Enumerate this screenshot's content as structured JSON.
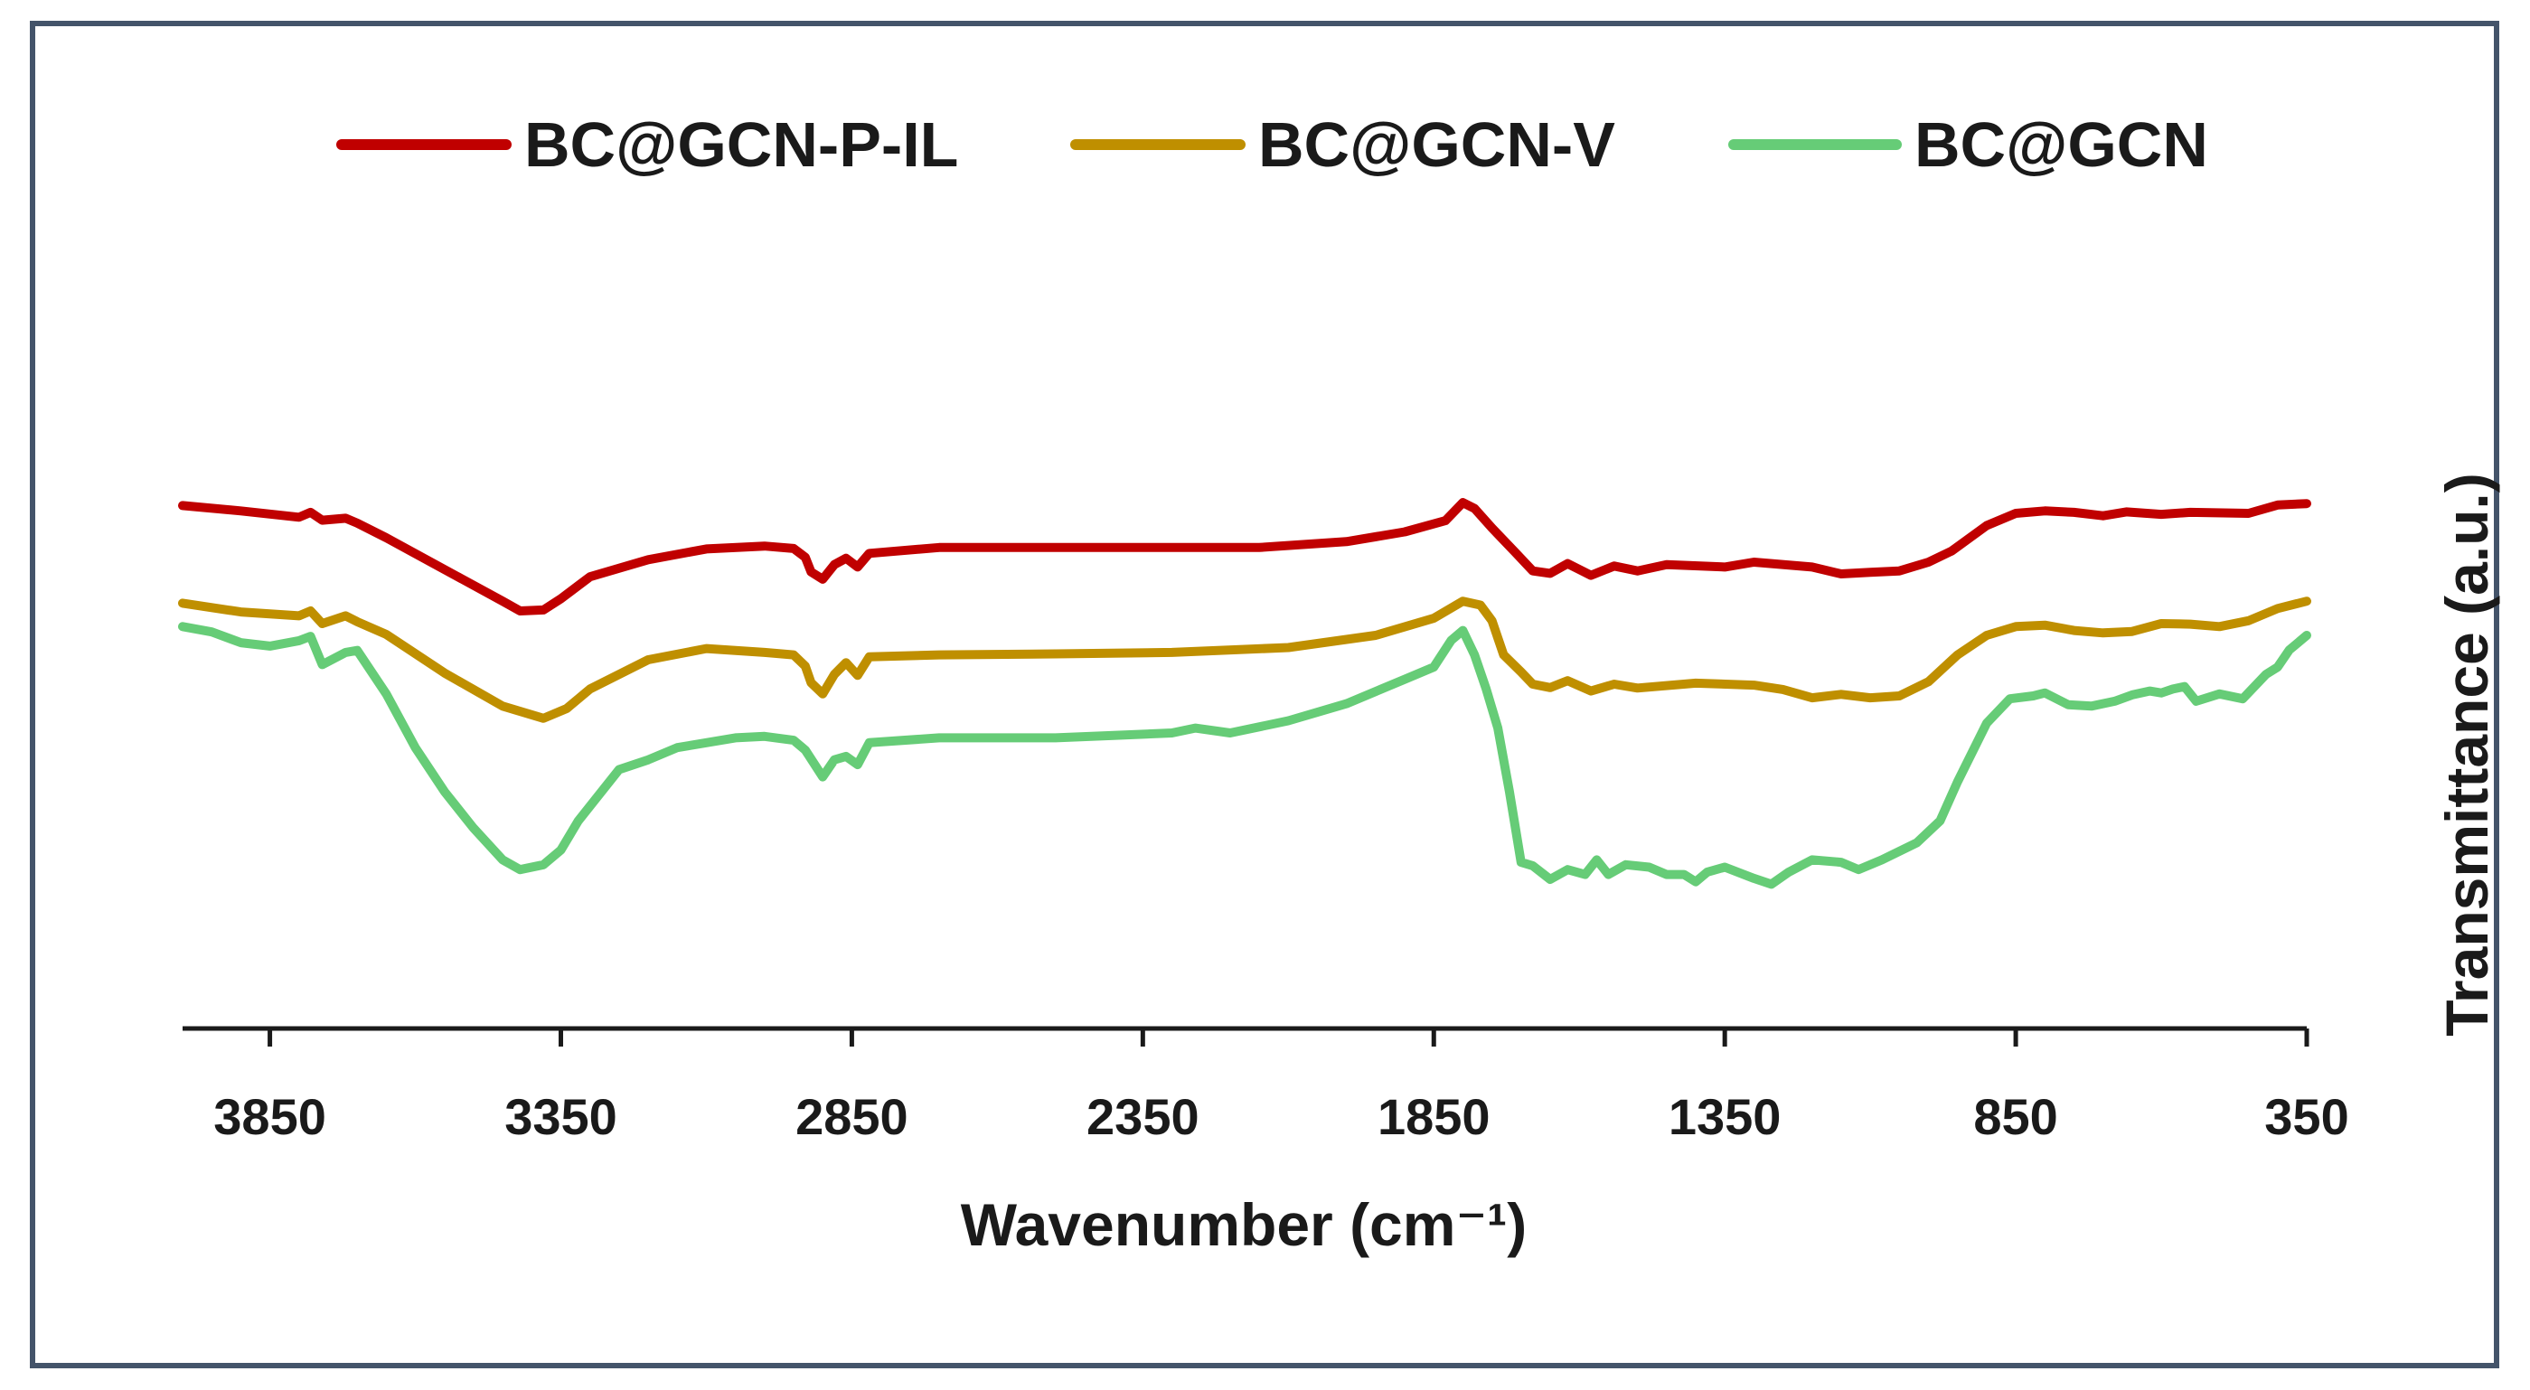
{
  "chart_data": {
    "type": "line",
    "xlabel": "Wavenumber (cm⁻¹)",
    "ylabel": "Transmittance (a.u.)",
    "xlim": [
      4000,
      350
    ],
    "x_reversed": true,
    "y_units": "arbitrary, offset traces",
    "ylim": [
      0,
      100
    ],
    "xticks": [
      3850,
      3350,
      2850,
      2350,
      1850,
      1350,
      850,
      350
    ],
    "grid": false,
    "legend_position": "top",
    "series": [
      {
        "name": "BC@GCN-P-IL",
        "color": "#c00000",
        "points": [
          [
            4000,
            81.6
          ],
          [
            3900,
            80.5
          ],
          [
            3800,
            79.2
          ],
          [
            3780,
            80.2
          ],
          [
            3760,
            78.6
          ],
          [
            3720,
            79.0
          ],
          [
            3700,
            78.0
          ],
          [
            3650,
            75.0
          ],
          [
            3550,
            68.5
          ],
          [
            3450,
            62.0
          ],
          [
            3420,
            60.0
          ],
          [
            3380,
            60.2
          ],
          [
            3350,
            62.5
          ],
          [
            3300,
            67.0
          ],
          [
            3200,
            70.5
          ],
          [
            3100,
            72.7
          ],
          [
            3000,
            73.3
          ],
          [
            2950,
            72.8
          ],
          [
            2930,
            71.0
          ],
          [
            2920,
            68.0
          ],
          [
            2900,
            66.5
          ],
          [
            2880,
            69.5
          ],
          [
            2860,
            70.8
          ],
          [
            2840,
            69.0
          ],
          [
            2820,
            71.8
          ],
          [
            2700,
            73.0
          ],
          [
            2500,
            73.0
          ],
          [
            2300,
            73.0
          ],
          [
            2150,
            73.0
          ],
          [
            2000,
            74.2
          ],
          [
            1900,
            76.2
          ],
          [
            1830,
            78.5
          ],
          [
            1800,
            82.2
          ],
          [
            1780,
            81.0
          ],
          [
            1750,
            77.0
          ],
          [
            1710,
            72.0
          ],
          [
            1680,
            68.2
          ],
          [
            1650,
            67.7
          ],
          [
            1620,
            69.7
          ],
          [
            1580,
            67.3
          ],
          [
            1540,
            69.2
          ],
          [
            1500,
            68.2
          ],
          [
            1450,
            69.5
          ],
          [
            1350,
            69.0
          ],
          [
            1300,
            70.0
          ],
          [
            1200,
            69.0
          ],
          [
            1150,
            67.6
          ],
          [
            1100,
            67.9
          ],
          [
            1050,
            68.2
          ],
          [
            1000,
            70.0
          ],
          [
            960,
            72.3
          ],
          [
            900,
            77.5
          ],
          [
            850,
            80.0
          ],
          [
            800,
            80.5
          ],
          [
            750,
            80.2
          ],
          [
            700,
            79.5
          ],
          [
            660,
            80.3
          ],
          [
            600,
            79.8
          ],
          [
            550,
            80.2
          ],
          [
            450,
            80.0
          ],
          [
            400,
            81.7
          ],
          [
            350,
            82.0
          ]
        ]
      },
      {
        "name": "BC@GCN-V",
        "color": "#bf8f00",
        "points": [
          [
            4000,
            61.6
          ],
          [
            3900,
            59.8
          ],
          [
            3800,
            59.0
          ],
          [
            3780,
            60.0
          ],
          [
            3760,
            57.4
          ],
          [
            3720,
            59.0
          ],
          [
            3700,
            57.8
          ],
          [
            3650,
            55.2
          ],
          [
            3550,
            47.3
          ],
          [
            3450,
            40.5
          ],
          [
            3380,
            38.0
          ],
          [
            3340,
            40.0
          ],
          [
            3300,
            44.0
          ],
          [
            3200,
            50.0
          ],
          [
            3100,
            52.3
          ],
          [
            3000,
            51.5
          ],
          [
            2950,
            51.0
          ],
          [
            2930,
            48.7
          ],
          [
            2920,
            45.3
          ],
          [
            2900,
            43.0
          ],
          [
            2880,
            47.0
          ],
          [
            2860,
            49.4
          ],
          [
            2840,
            46.8
          ],
          [
            2820,
            50.6
          ],
          [
            2700,
            51.0
          ],
          [
            2500,
            51.2
          ],
          [
            2300,
            51.5
          ],
          [
            2100,
            52.5
          ],
          [
            1950,
            55.0
          ],
          [
            1850,
            58.5
          ],
          [
            1800,
            62.0
          ],
          [
            1770,
            61.2
          ],
          [
            1750,
            58.0
          ],
          [
            1730,
            51.0
          ],
          [
            1700,
            47.5
          ],
          [
            1680,
            45.0
          ],
          [
            1650,
            44.3
          ],
          [
            1620,
            45.7
          ],
          [
            1580,
            43.6
          ],
          [
            1540,
            45.0
          ],
          [
            1500,
            44.2
          ],
          [
            1400,
            45.2
          ],
          [
            1300,
            44.8
          ],
          [
            1250,
            43.9
          ],
          [
            1200,
            42.2
          ],
          [
            1150,
            42.9
          ],
          [
            1100,
            42.2
          ],
          [
            1050,
            42.6
          ],
          [
            1000,
            45.5
          ],
          [
            950,
            51.0
          ],
          [
            900,
            55.0
          ],
          [
            850,
            56.8
          ],
          [
            800,
            57.1
          ],
          [
            750,
            56.0
          ],
          [
            700,
            55.5
          ],
          [
            650,
            55.8
          ],
          [
            600,
            57.4
          ],
          [
            550,
            57.3
          ],
          [
            500,
            56.8
          ],
          [
            450,
            58.0
          ],
          [
            400,
            60.5
          ],
          [
            350,
            62.0
          ]
        ]
      },
      {
        "name": "BC@GCN",
        "color": "#66cc77",
        "points": [
          [
            4000,
            56.8
          ],
          [
            3950,
            55.7
          ],
          [
            3900,
            53.5
          ],
          [
            3850,
            52.8
          ],
          [
            3800,
            53.9
          ],
          [
            3780,
            54.8
          ],
          [
            3760,
            49.0
          ],
          [
            3720,
            51.5
          ],
          [
            3700,
            51.9
          ],
          [
            3650,
            43.0
          ],
          [
            3600,
            32.0
          ],
          [
            3550,
            23.0
          ],
          [
            3500,
            15.5
          ],
          [
            3450,
            9.0
          ],
          [
            3420,
            7.0
          ],
          [
            3380,
            8.0
          ],
          [
            3350,
            11.0
          ],
          [
            3320,
            17.0
          ],
          [
            3250,
            27.5
          ],
          [
            3200,
            29.5
          ],
          [
            3150,
            32.0
          ],
          [
            3050,
            34.0
          ],
          [
            3000,
            34.3
          ],
          [
            2950,
            33.5
          ],
          [
            2930,
            31.5
          ],
          [
            2900,
            26.0
          ],
          [
            2880,
            29.5
          ],
          [
            2860,
            30.2
          ],
          [
            2840,
            28.5
          ],
          [
            2820,
            33.0
          ],
          [
            2700,
            34.0
          ],
          [
            2500,
            34.0
          ],
          [
            2400,
            34.5
          ],
          [
            2300,
            35.0
          ],
          [
            2260,
            36.0
          ],
          [
            2200,
            35.0
          ],
          [
            2100,
            37.5
          ],
          [
            2000,
            41.0
          ],
          [
            1900,
            46.0
          ],
          [
            1850,
            48.5
          ],
          [
            1820,
            54.0
          ],
          [
            1800,
            56.0
          ],
          [
            1780,
            51.0
          ],
          [
            1760,
            44.0
          ],
          [
            1740,
            36.0
          ],
          [
            1720,
            23.0
          ],
          [
            1700,
            8.5
          ],
          [
            1680,
            7.8
          ],
          [
            1650,
            5.0
          ],
          [
            1620,
            7.0
          ],
          [
            1590,
            6.0
          ],
          [
            1570,
            9.0
          ],
          [
            1550,
            6.0
          ],
          [
            1520,
            8.0
          ],
          [
            1480,
            7.5
          ],
          [
            1450,
            6.0
          ],
          [
            1420,
            6.0
          ],
          [
            1400,
            4.5
          ],
          [
            1380,
            6.5
          ],
          [
            1350,
            7.5
          ],
          [
            1300,
            5.2
          ],
          [
            1270,
            4.0
          ],
          [
            1240,
            6.5
          ],
          [
            1200,
            9.0
          ],
          [
            1150,
            8.5
          ],
          [
            1120,
            7.0
          ],
          [
            1080,
            9.0
          ],
          [
            1020,
            12.5
          ],
          [
            980,
            17.0
          ],
          [
            950,
            25.0
          ],
          [
            900,
            37.0
          ],
          [
            860,
            42.0
          ],
          [
            820,
            42.6
          ],
          [
            800,
            43.2
          ],
          [
            760,
            40.8
          ],
          [
            720,
            40.5
          ],
          [
            680,
            41.5
          ],
          [
            650,
            42.8
          ],
          [
            620,
            43.6
          ],
          [
            600,
            43.2
          ],
          [
            580,
            44.0
          ],
          [
            560,
            44.5
          ],
          [
            540,
            41.5
          ],
          [
            500,
            43.0
          ],
          [
            460,
            42.0
          ],
          [
            420,
            47.0
          ],
          [
            400,
            48.5
          ],
          [
            380,
            52.0
          ],
          [
            350,
            55.0
          ]
        ]
      }
    ]
  }
}
